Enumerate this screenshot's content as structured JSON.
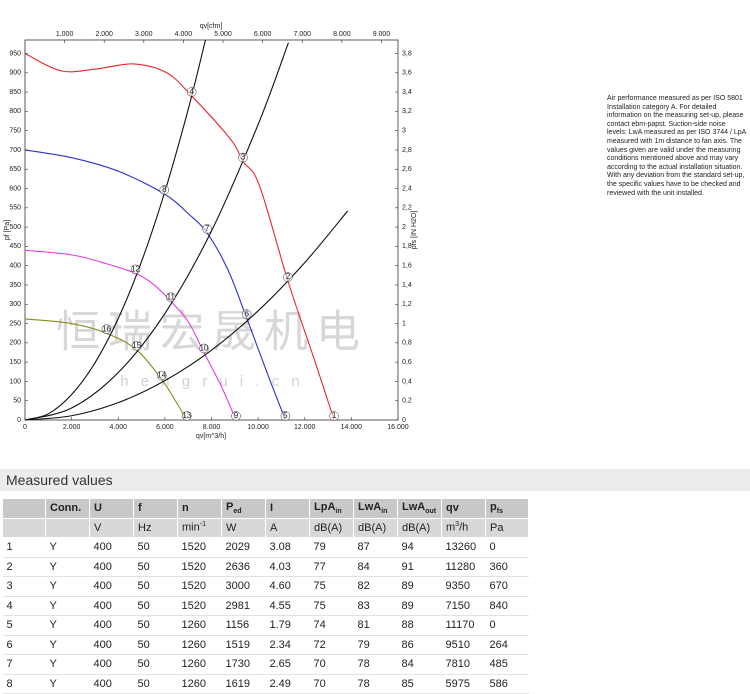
{
  "chart_data": {
    "type": "line",
    "x_label": "qv[m^3/h]",
    "x2_label": "qv[cfm]",
    "y_label": "pf [Pa]",
    "y2_label": "pfs [IN H2O]",
    "xlim": [
      0,
      16000
    ],
    "xticks": [
      0,
      {
        "value": 2000,
        "label": "2.000"
      },
      {
        "value": 4000,
        "label": "4.000"
      },
      {
        "value": 6000,
        "label": "6.000"
      },
      {
        "value": 8000,
        "label": "8.000"
      },
      {
        "value": 10000,
        "label": "10.000"
      },
      {
        "value": 12000,
        "label": "12.000"
      },
      {
        "value": 14000,
        "label": "14.000"
      },
      {
        "value": 16000,
        "label": "16.000"
      }
    ],
    "x2lim": [
      0,
      9417
    ],
    "x2ticks": [
      {
        "value": 1000,
        "label": "1.000"
      },
      {
        "value": 2000,
        "label": "2.000"
      },
      {
        "value": 3000,
        "label": "3.000"
      },
      {
        "value": 4000,
        "label": "4.000"
      },
      {
        "value": 5000,
        "label": "5.000"
      },
      {
        "value": 6000,
        "label": "6.000"
      },
      {
        "value": 7000,
        "label": "7.000"
      },
      {
        "value": 8000,
        "label": "8.000"
      },
      {
        "value": 9000,
        "label": "9.000"
      }
    ],
    "ylim": [
      0,
      985
    ],
    "yticks": [
      0,
      50,
      100,
      150,
      200,
      250,
      300,
      350,
      400,
      450,
      500,
      550,
      600,
      650,
      700,
      750,
      800,
      850,
      900,
      950
    ],
    "y2lim": [
      0,
      3.94
    ],
    "y2ticks": [
      0,
      {
        "value": 0.2,
        "label": "0,2"
      },
      {
        "value": 0.4,
        "label": "0,4"
      },
      {
        "value": 0.6,
        "label": "0,6"
      },
      {
        "value": 0.8,
        "label": "0,8"
      },
      {
        "value": 1,
        "label": "1"
      },
      {
        "value": 1.2,
        "label": "1,2"
      },
      {
        "value": 1.4,
        "label": "1,4"
      },
      {
        "value": 1.6,
        "label": "1,6"
      },
      {
        "value": 1.8,
        "label": "1,8"
      },
      {
        "value": 2,
        "label": "2"
      },
      {
        "value": 2.2,
        "label": "2,2"
      },
      {
        "value": 2.4,
        "label": "2,4"
      },
      {
        "value": 2.6,
        "label": "2,6"
      },
      {
        "value": 2.8,
        "label": "2,8"
      },
      {
        "value": 3,
        "label": "3"
      },
      {
        "value": 3.2,
        "label": "3,2"
      },
      {
        "value": 3.4,
        "label": "3,4"
      },
      {
        "value": 3.6,
        "label": "3,6"
      },
      {
        "value": 3.8,
        "label": "3,8"
      }
    ],
    "series": [
      {
        "color": "#e8282b",
        "x": [
          0,
          1553,
          3062,
          4657,
          6080,
          7150,
          8840,
          9350,
          10050,
          11280,
          12420,
          13260
        ],
        "values": [
          950,
          905,
          910,
          923,
          900,
          840,
          726,
          670,
          609,
          360,
          155,
          0
        ]
      },
      {
        "color": "#2a2fd0",
        "x": [
          0,
          2000,
          4000,
          5975,
          7000,
          7810,
          8700,
          9510,
          10400,
          11170
        ],
        "values": [
          700,
          680,
          645,
          586,
          535,
          485,
          390,
          264,
          120,
          0
        ]
      },
      {
        "color": "#e33be0",
        "x": [
          0,
          2000,
          3500,
          4743,
          5500,
          6253,
          7000,
          7676,
          8400,
          9050
        ],
        "values": [
          440,
          428,
          405,
          380,
          352,
          308,
          255,
          175,
          90,
          0
        ]
      },
      {
        "color": "#8a8a1e",
        "x": [
          0,
          2000,
          3493,
          4787,
          5865,
          6500,
          6940
        ],
        "values": [
          262,
          250,
          225,
          182,
          105,
          45,
          0
        ]
      },
      {
        "color": "#111111",
        "x": [
          0,
          1000,
          2000,
          3000,
          4000,
          5000,
          6000,
          7000,
          7750
        ],
        "values": [
          0,
          16,
          66,
          148,
          263,
          411,
          592,
          805,
          987
        ]
      },
      {
        "color": "#111111",
        "x": [
          0,
          2000,
          4000,
          6000,
          8000,
          10000,
          11300
        ],
        "values": [
          0,
          31,
          123,
          276,
          490,
          766,
          978
        ]
      },
      {
        "color": "#111111",
        "x": [
          0,
          2000,
          4000,
          6000,
          8000,
          10000,
          12000,
          13840
        ],
        "values": [
          0,
          11,
          45,
          102,
          181,
          283,
          408,
          542
        ]
      }
    ],
    "operating_points": [
      {
        "label": "1",
        "x": 13260,
        "y": 0
      },
      {
        "label": "2",
        "x": 11280,
        "y": 360
      },
      {
        "label": "3",
        "x": 9350,
        "y": 670
      },
      {
        "label": "4",
        "x": 7150,
        "y": 840
      },
      {
        "label": "5",
        "x": 11170,
        "y": 0
      },
      {
        "label": "6",
        "x": 9510,
        "y": 264
      },
      {
        "label": "7",
        "x": 7810,
        "y": 485
      },
      {
        "label": "8",
        "x": 5975,
        "y": 586
      },
      {
        "label": "9",
        "x": 9050,
        "y": 0
      },
      {
        "label": "10",
        "x": 7676,
        "y": 175
      },
      {
        "label": "11",
        "x": 6253,
        "y": 308
      },
      {
        "label": "12",
        "x": 4743,
        "y": 380
      },
      {
        "label": "13",
        "x": 6940,
        "y": 0
      },
      {
        "label": "14",
        "x": 5865,
        "y": 105
      },
      {
        "label": "15",
        "x": 4787,
        "y": 182
      },
      {
        "label": "16",
        "x": 3493,
        "y": 225
      }
    ]
  },
  "watermark": {
    "main": "恒瑞宏晟机电",
    "sub": "h e n g r u i . c n"
  },
  "note": "Air performance measured as per ISO 5801 Installation category A. For detailed information on the measuring set-up, please contact ebm-papst. Suction-side noise levels: LwA measured as per ISO 3744 / LpA measured with 1m distance to fan axis. The values given are valid under the measuring conditions mentioned above and may vary according to the actual installation situation. With any deviation from the standard set-up, the specific values have to be checked and reviewed with the unit installed.",
  "table": {
    "title": "Measured values",
    "header": [
      "Conn.",
      "U",
      "f",
      "n",
      {
        "main": "P",
        "sub": "ed"
      },
      "I",
      {
        "main": "LpA",
        "sub": "in"
      },
      {
        "main": "LwA",
        "sub": "in"
      },
      {
        "main": "LwA",
        "sub": "out"
      },
      "qv",
      {
        "main": "p",
        "sub": "fs"
      }
    ],
    "units": [
      "V",
      "Hz",
      {
        "main": "min",
        "sup": "-1"
      },
      "W",
      "A",
      "dB(A)",
      "dB(A)",
      "dB(A)",
      {
        "main": "m",
        "sup": "3",
        "tail": "/h"
      },
      "Pa"
    ],
    "rows": [
      [
        "1",
        "Y",
        "400",
        "50",
        "1520",
        "2029",
        "3.08",
        "79",
        "87",
        "94",
        "13260",
        "0"
      ],
      [
        "2",
        "Y",
        "400",
        "50",
        "1520",
        "2636",
        "4.03",
        "77",
        "84",
        "91",
        "11280",
        "360"
      ],
      [
        "3",
        "Y",
        "400",
        "50",
        "1520",
        "3000",
        "4.60",
        "75",
        "82",
        "89",
        "9350",
        "670"
      ],
      [
        "4",
        "Y",
        "400",
        "50",
        "1520",
        "2981",
        "4.55",
        "75",
        "83",
        "89",
        "7150",
        "840"
      ],
      [
        "5",
        "Y",
        "400",
        "50",
        "1260",
        "1156",
        "1.79",
        "74",
        "81",
        "88",
        "11170",
        "0"
      ],
      [
        "6",
        "Y",
        "400",
        "50",
        "1260",
        "1519",
        "2.34",
        "72",
        "79",
        "86",
        "9510",
        "264"
      ],
      [
        "7",
        "Y",
        "400",
        "50",
        "1260",
        "1730",
        "2.65",
        "70",
        "78",
        "84",
        "7810",
        "485"
      ],
      [
        "8",
        "Y",
        "400",
        "50",
        "1260",
        "1619",
        "2.49",
        "70",
        "78",
        "85",
        "5975",
        "586"
      ]
    ]
  }
}
